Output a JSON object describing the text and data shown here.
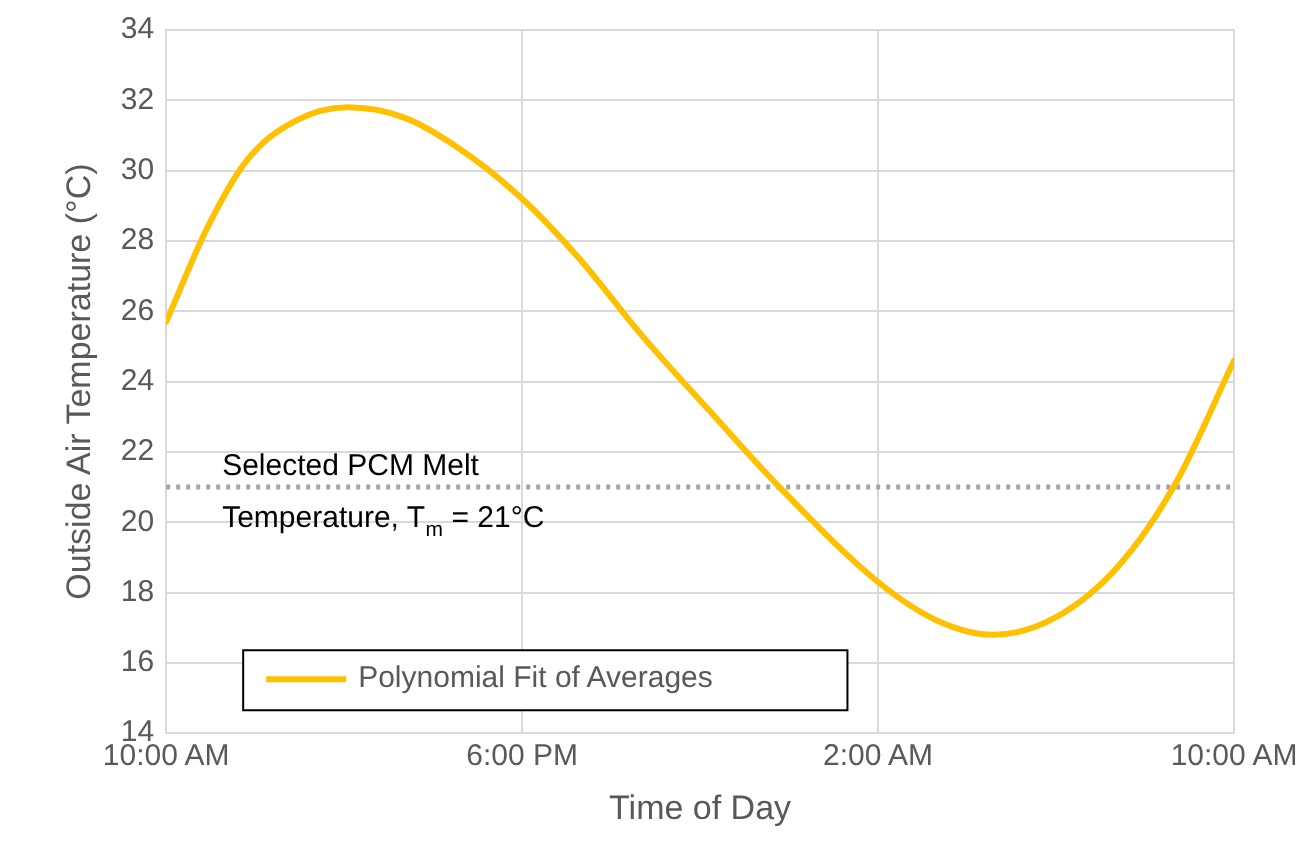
{
  "chart_data": {
    "type": "line",
    "xlabel": "Time of Day",
    "ylabel": "Outside Air Temperature (°C)",
    "x": [
      "--01-01T10:00",
      "--01-01T10:56",
      "--01-01T11:49",
      "--01-01T12:53",
      "--01-01T14:05",
      "--01-01T15:22",
      "--01-01T16:37",
      "--01-01T18:00",
      "--01-01T19:17",
      "--01-01T20:42",
      "--01-01T22:20",
      "--01-01T23:47",
      "--01-02T02:00",
      "--01-02T03:20",
      "--01-02T04:35",
      "--01-02T06:00",
      "--01-02T07:26",
      "--01-02T08:41",
      "--01-02T10:00"
    ],
    "series": [
      {
        "name": "Polynomial Fit of Averages",
        "color": "#ffc000",
        "values": [
          25.7,
          28.4,
          30.3,
          31.4,
          31.8,
          31.5,
          30.6,
          29.2,
          27.5,
          25.3,
          23.0,
          21.0,
          18.3,
          17.2,
          16.8,
          17.3,
          18.8,
          21.1,
          24.6
        ]
      }
    ],
    "xlim": [
      "--01-01T10:00",
      "--01-02T10:00"
    ],
    "xticks": [
      {
        "value": "--01-01T10:00",
        "label": "10:00 AM"
      },
      {
        "value": "--01-01T18:00",
        "label": "6:00 PM"
      },
      {
        "value": "--01-02T02:00",
        "label": "2:00 AM"
      },
      {
        "value": "--01-02T10:00",
        "label": "10:00 AM"
      }
    ],
    "ylim": [
      14,
      34
    ],
    "yticks": [
      14,
      16,
      18,
      20,
      22,
      24,
      26,
      28,
      30,
      32,
      34
    ],
    "ref_lines": [
      {
        "axis": "y",
        "value": 21,
        "label": "Selected PCM Melt Temperature, T$_{m}$ = 21°C",
        "color": "#a6a6a6",
        "line_style": "dotted"
      }
    ],
    "grid": true,
    "legend": "bottom left",
    "marker": "none",
    "line_style": "solid"
  }
}
